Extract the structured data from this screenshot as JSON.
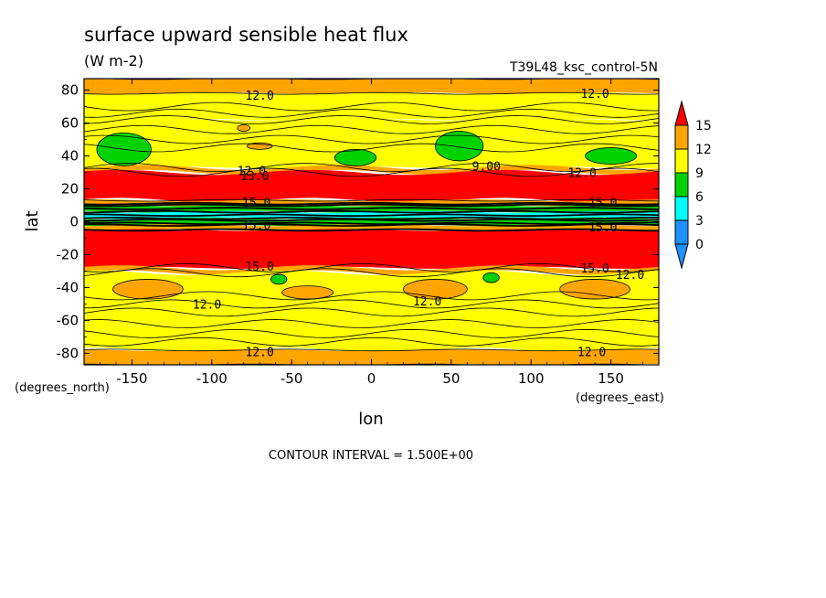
{
  "chart_data": {
    "type": "heatmap",
    "title": "surface upward sensible heat flux",
    "subtitle": "(W m-2)",
    "run_label": "T39L48_ksc_control-5N",
    "xlabel": "lon",
    "ylabel": "lat",
    "x_units": "(degrees_east)",
    "y_units": "(degrees_north)",
    "xlim": [
      -180,
      180
    ],
    "ylim": [
      -87,
      87
    ],
    "x_ticks": [
      -150,
      -100,
      -50,
      0,
      50,
      100,
      150
    ],
    "y_ticks": [
      80,
      60,
      40,
      20,
      0,
      -20,
      -40,
      -60,
      -80
    ],
    "x_tick_labels": [
      "-150",
      "-100",
      "-50",
      "0",
      "50",
      "100",
      "150"
    ],
    "y_tick_labels": [
      "80",
      "60",
      "40",
      "20",
      "0",
      "-20",
      "-40",
      "-60",
      "-80"
    ],
    "contour_interval_text": "CONTOUR INTERVAL = 1.500E+00",
    "colorbar": {
      "levels": [
        0,
        3,
        6,
        9,
        12,
        15
      ],
      "labels": [
        "0",
        "3",
        "6",
        "9",
        "12",
        "15"
      ],
      "colors": [
        "#1e90ff",
        "#00ffff",
        "#00d200",
        "#ffff00",
        "#ffa500",
        "#ff0000"
      ]
    },
    "bands": [
      {
        "lat_min": 78,
        "lat_max": 87,
        "level": 12
      },
      {
        "lat_min": 62,
        "lat_max": 78,
        "level": 9
      },
      {
        "lat_min": 33,
        "lat_max": 62,
        "level": 9
      },
      {
        "lat_min": 30,
        "lat_max": 33,
        "level": 12
      },
      {
        "lat_min": 13,
        "lat_max": 30,
        "level": 15
      },
      {
        "lat_min": 10,
        "lat_max": 13,
        "level": 12
      },
      {
        "lat_min": 6,
        "lat_max": 10,
        "level": 6
      },
      {
        "lat_min": 2,
        "lat_max": 6,
        "level": 3
      },
      {
        "lat_min": -2,
        "lat_max": 2,
        "level": 6
      },
      {
        "lat_min": -5,
        "lat_max": -2,
        "level": 12
      },
      {
        "lat_min": -28,
        "lat_max": -5,
        "level": 15
      },
      {
        "lat_min": -31,
        "lat_max": -28,
        "level": 12
      },
      {
        "lat_min": -78,
        "lat_max": -31,
        "level": 9
      },
      {
        "lat_min": -87,
        "lat_max": -78,
        "level": 12
      }
    ],
    "patches": [
      {
        "lon": -155,
        "lat": 44,
        "rlon": 17,
        "rlat": 10,
        "level": 6
      },
      {
        "lon": -10,
        "lat": 39,
        "rlon": 13,
        "rlat": 5,
        "level": 6
      },
      {
        "lon": 55,
        "lat": 46,
        "rlon": 15,
        "rlat": 9,
        "level": 6
      },
      {
        "lon": 150,
        "lat": 40,
        "rlon": 16,
        "rlat": 5,
        "level": 6
      },
      {
        "lon": -80,
        "lat": 57,
        "rlon": 4,
        "rlat": 2,
        "level": 12
      },
      {
        "lon": -70,
        "lat": 46,
        "rlon": 8,
        "rlat": 2,
        "level": 12
      },
      {
        "lon": -140,
        "lat": -41,
        "rlon": 22,
        "rlat": 6,
        "level": 12
      },
      {
        "lon": -40,
        "lat": -43,
        "rlon": 16,
        "rlat": 4,
        "level": 12
      },
      {
        "lon": 40,
        "lat": -41,
        "rlon": 20,
        "rlat": 6,
        "level": 12
      },
      {
        "lon": 140,
        "lat": -41,
        "rlon": 22,
        "rlat": 6,
        "level": 12
      },
      {
        "lon": -58,
        "lat": -35,
        "rlon": 5,
        "rlat": 3,
        "level": 6
      },
      {
        "lon": 75,
        "lat": -34,
        "rlon": 5,
        "rlat": 3,
        "level": 6
      }
    ],
    "contour_labels": [
      {
        "text": "12.0",
        "lon": -70,
        "lat": 77
      },
      {
        "text": "12.0",
        "lon": 140,
        "lat": 78
      },
      {
        "text": "12.0",
        "lon": -75,
        "lat": 31
      },
      {
        "text": "13.0",
        "lon": -73,
        "lat": 28
      },
      {
        "text": "9.00",
        "lon": 72,
        "lat": 34
      },
      {
        "text": "12.0",
        "lon": 132,
        "lat": 30
      },
      {
        "text": "15.0",
        "lon": -72,
        "lat": 12
      },
      {
        "text": "15.0",
        "lon": 145,
        "lat": 12
      },
      {
        "text": "15.0",
        "lon": -72,
        "lat": -2
      },
      {
        "text": "15.0",
        "lon": 145,
        "lat": -3
      },
      {
        "text": "15.0",
        "lon": -70,
        "lat": -27
      },
      {
        "text": "15.0",
        "lon": 140,
        "lat": -28
      },
      {
        "text": "12.0",
        "lon": 162,
        "lat": -32
      },
      {
        "text": "12.0",
        "lon": -103,
        "lat": -50
      },
      {
        "text": "12.0",
        "lon": 35,
        "lat": -48
      },
      {
        "text": "12.0",
        "lon": -70,
        "lat": -79
      },
      {
        "text": "12.0",
        "lon": 138,
        "lat": -79
      }
    ]
  }
}
